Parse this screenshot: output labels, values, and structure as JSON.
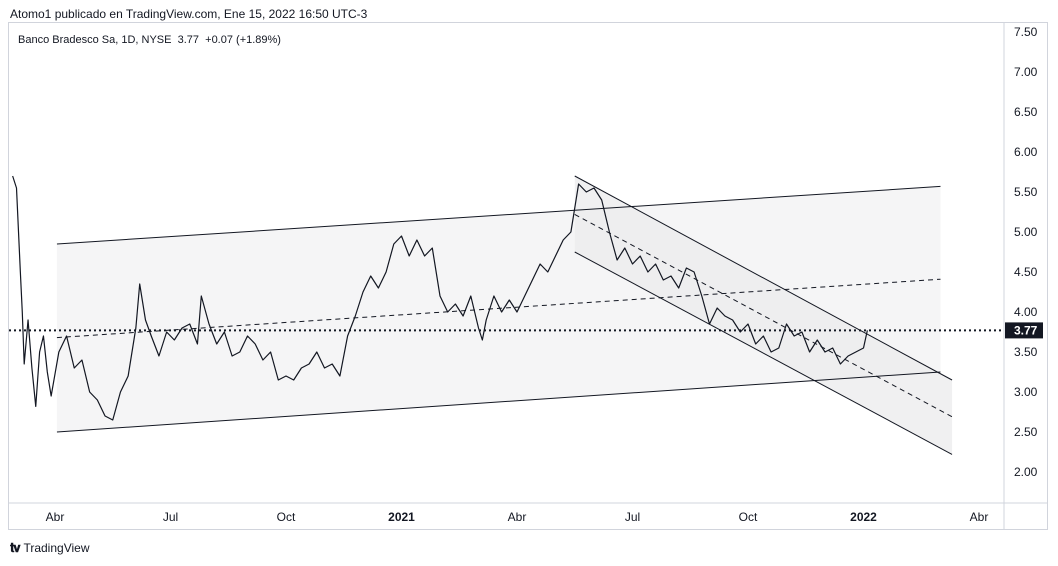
{
  "header": {
    "publisher": "Atomo1 publicado en TradingView.com, Ene 15, 2022 16:50 UTC-3"
  },
  "legend": {
    "symbol": "Banco Bradesco Sa, 1D, NYSE",
    "price": "3.77",
    "change": "+0.07 (+1.89%)"
  },
  "footer": {
    "brand": "TradingView",
    "logo": "tradingview-logo-icon"
  },
  "colors": {
    "line": "#131722",
    "channel_fill": "#f5f5f6",
    "price_label_bg": "#131722",
    "grid": "#d1d4dc"
  },
  "chart_data": {
    "type": "line",
    "title": "Banco Bradesco Sa, 1D, NYSE",
    "ylim": [
      1.5,
      7.6
    ],
    "y_ticks": [
      "7.50",
      "7.00",
      "6.50",
      "6.00",
      "5.50",
      "5.00",
      "4.50",
      "4.00",
      "3.50",
      "3.00",
      "2.50",
      "2.00"
    ],
    "x_ticks": [
      {
        "label": "Abr",
        "t": 0.0,
        "bold": false
      },
      {
        "label": "Jul",
        "t": 3.0,
        "bold": false
      },
      {
        "label": "Oct",
        "t": 6.0,
        "bold": false
      },
      {
        "label": "2021",
        "t": 9.0,
        "bold": true
      },
      {
        "label": "Abr",
        "t": 12.0,
        "bold": false
      },
      {
        "label": "Jul",
        "t": 15.0,
        "bold": false
      },
      {
        "label": "Oct",
        "t": 18.0,
        "bold": false
      },
      {
        "label": "2022",
        "t": 21.0,
        "bold": true
      },
      {
        "label": "Abr",
        "t": 24.0,
        "bold": false
      }
    ],
    "x_unit": "months since 2020-04",
    "last_price": 3.77,
    "series": [
      {
        "values": [
          [
            -1.1,
            5.7
          ],
          [
            -1.0,
            5.55
          ],
          [
            -0.9,
            4.5
          ],
          [
            -0.85,
            4.0
          ],
          [
            -0.8,
            3.35
          ],
          [
            -0.7,
            3.9
          ],
          [
            -0.6,
            3.3
          ],
          [
            -0.5,
            2.82
          ],
          [
            -0.4,
            3.5
          ],
          [
            -0.3,
            3.7
          ],
          [
            -0.2,
            3.25
          ],
          [
            -0.1,
            2.95
          ],
          [
            0.1,
            3.5
          ],
          [
            0.3,
            3.7
          ],
          [
            0.5,
            3.3
          ],
          [
            0.7,
            3.4
          ],
          [
            0.9,
            3.0
          ],
          [
            1.1,
            2.9
          ],
          [
            1.3,
            2.7
          ],
          [
            1.5,
            2.65
          ],
          [
            1.7,
            3.0
          ],
          [
            1.9,
            3.2
          ],
          [
            2.1,
            3.8
          ],
          [
            2.2,
            4.35
          ],
          [
            2.35,
            3.9
          ],
          [
            2.5,
            3.7
          ],
          [
            2.7,
            3.45
          ],
          [
            2.9,
            3.75
          ],
          [
            3.1,
            3.65
          ],
          [
            3.3,
            3.8
          ],
          [
            3.5,
            3.85
          ],
          [
            3.7,
            3.6
          ],
          [
            3.8,
            4.2
          ],
          [
            4.0,
            3.85
          ],
          [
            4.2,
            3.6
          ],
          [
            4.4,
            3.75
          ],
          [
            4.6,
            3.45
          ],
          [
            4.8,
            3.5
          ],
          [
            5.0,
            3.7
          ],
          [
            5.2,
            3.6
          ],
          [
            5.4,
            3.4
          ],
          [
            5.6,
            3.5
          ],
          [
            5.8,
            3.15
          ],
          [
            6.0,
            3.2
          ],
          [
            6.2,
            3.15
          ],
          [
            6.4,
            3.3
          ],
          [
            6.6,
            3.35
          ],
          [
            6.8,
            3.5
          ],
          [
            7.0,
            3.3
          ],
          [
            7.2,
            3.35
          ],
          [
            7.4,
            3.2
          ],
          [
            7.6,
            3.7
          ],
          [
            7.8,
            3.95
          ],
          [
            8.0,
            4.25
          ],
          [
            8.2,
            4.45
          ],
          [
            8.4,
            4.3
          ],
          [
            8.6,
            4.5
          ],
          [
            8.8,
            4.85
          ],
          [
            9.0,
            4.95
          ],
          [
            9.2,
            4.7
          ],
          [
            9.4,
            4.9
          ],
          [
            9.6,
            4.7
          ],
          [
            9.8,
            4.8
          ],
          [
            10.0,
            4.2
          ],
          [
            10.2,
            4.0
          ],
          [
            10.4,
            4.1
          ],
          [
            10.6,
            3.95
          ],
          [
            10.8,
            4.2
          ],
          [
            11.0,
            3.8
          ],
          [
            11.1,
            3.65
          ],
          [
            11.2,
            3.9
          ],
          [
            11.4,
            4.2
          ],
          [
            11.6,
            4.0
          ],
          [
            11.8,
            4.15
          ],
          [
            12.0,
            4.0
          ],
          [
            12.2,
            4.2
          ],
          [
            12.4,
            4.4
          ],
          [
            12.6,
            4.6
          ],
          [
            12.8,
            4.5
          ],
          [
            13.0,
            4.7
          ],
          [
            13.2,
            4.9
          ],
          [
            13.4,
            5.0
          ],
          [
            13.6,
            5.6
          ],
          [
            13.8,
            5.5
          ],
          [
            14.0,
            5.55
          ],
          [
            14.2,
            5.4
          ],
          [
            14.4,
            5.0
          ],
          [
            14.6,
            4.65
          ],
          [
            14.8,
            4.8
          ],
          [
            15.0,
            4.6
          ],
          [
            15.2,
            4.7
          ],
          [
            15.4,
            4.5
          ],
          [
            15.6,
            4.6
          ],
          [
            15.8,
            4.4
          ],
          [
            16.0,
            4.45
          ],
          [
            16.2,
            4.3
          ],
          [
            16.4,
            4.55
          ],
          [
            16.6,
            4.5
          ],
          [
            16.8,
            4.2
          ],
          [
            17.0,
            3.85
          ],
          [
            17.2,
            4.05
          ],
          [
            17.4,
            3.95
          ],
          [
            17.6,
            3.9
          ],
          [
            17.8,
            3.75
          ],
          [
            18.0,
            3.85
          ],
          [
            18.2,
            3.6
          ],
          [
            18.4,
            3.7
          ],
          [
            18.6,
            3.5
          ],
          [
            18.8,
            3.55
          ],
          [
            19.0,
            3.85
          ],
          [
            19.2,
            3.7
          ],
          [
            19.4,
            3.75
          ],
          [
            19.6,
            3.5
          ],
          [
            19.8,
            3.65
          ],
          [
            20.0,
            3.5
          ],
          [
            20.2,
            3.55
          ],
          [
            20.4,
            3.35
          ],
          [
            20.6,
            3.45
          ],
          [
            20.8,
            3.5
          ],
          [
            21.0,
            3.55
          ],
          [
            21.1,
            3.77
          ]
        ]
      }
    ],
    "annotations": {
      "wide_channel": {
        "lower": [
          [
            0.05,
            2.5
          ],
          [
            23.0,
            3.25
          ]
        ],
        "upper": [
          [
            0.05,
            4.85
          ],
          [
            23.0,
            5.57
          ]
        ],
        "mid": [
          [
            0.05,
            3.68
          ],
          [
            23.0,
            4.41
          ]
        ]
      },
      "down_channel": {
        "upper": [
          [
            13.5,
            5.7
          ],
          [
            23.3,
            3.15
          ]
        ],
        "lower": [
          [
            13.5,
            4.75
          ],
          [
            23.3,
            2.22
          ]
        ],
        "mid": [
          [
            13.5,
            5.22
          ],
          [
            23.3,
            2.69
          ]
        ]
      }
    }
  }
}
